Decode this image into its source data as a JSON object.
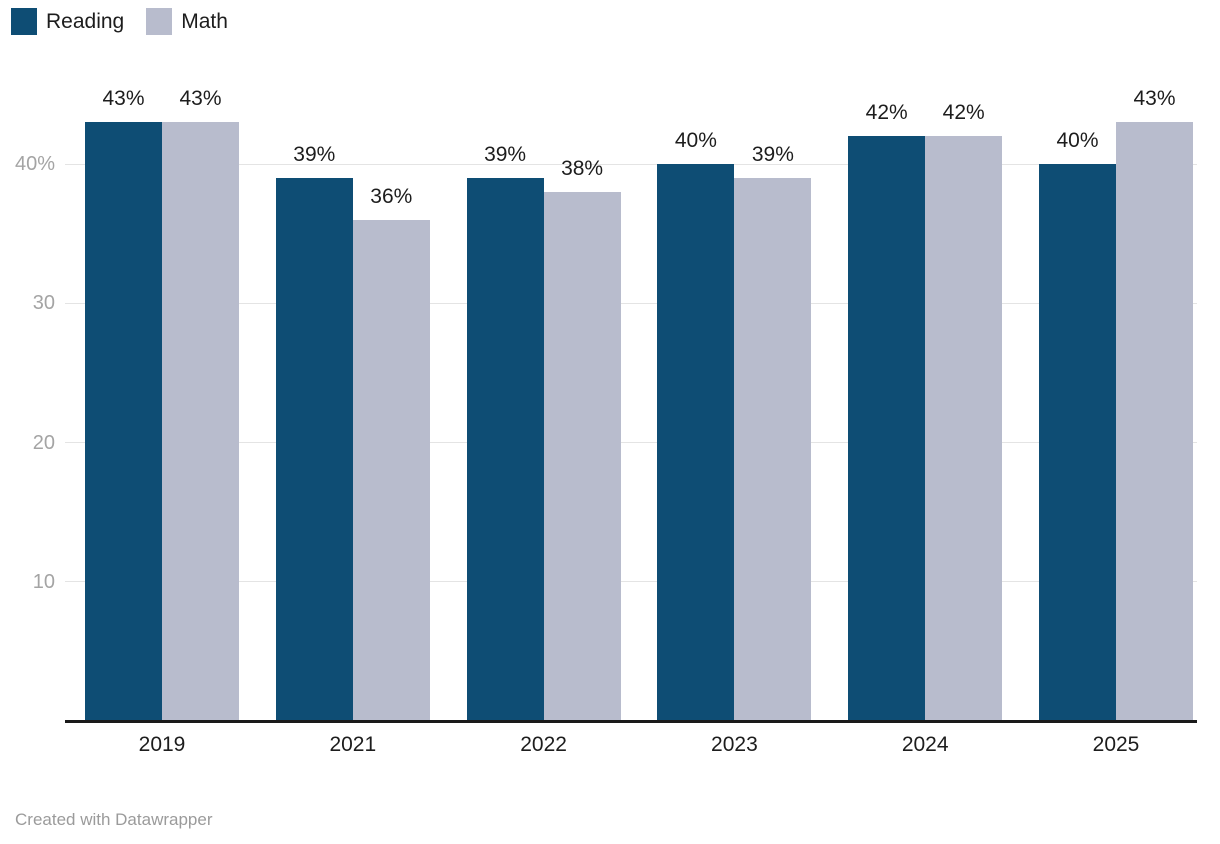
{
  "chart_data": {
    "type": "bar",
    "title": "",
    "xlabel": "",
    "ylabel": "",
    "categories": [
      "2019",
      "2021",
      "2022",
      "2023",
      "2024",
      "2025"
    ],
    "series": [
      {
        "name": "Reading",
        "color": "#0e4d74",
        "values": [
          43,
          39,
          39,
          40,
          42,
          40
        ]
      },
      {
        "name": "Math",
        "color": "#b8bccd",
        "values": [
          43,
          36,
          38,
          39,
          42,
          43
        ]
      }
    ],
    "value_suffix": "%",
    "data_labels": true,
    "ylim": [
      0,
      45
    ],
    "yticks": [
      {
        "value": 40,
        "label": "40%"
      },
      {
        "value": 30,
        "label": "30"
      },
      {
        "value": 20,
        "label": "20"
      },
      {
        "value": 10,
        "label": "10"
      }
    ],
    "grid": "horizontal",
    "legend_position": "top-left"
  },
  "footer": {
    "attribution": "Created with Datawrapper"
  }
}
